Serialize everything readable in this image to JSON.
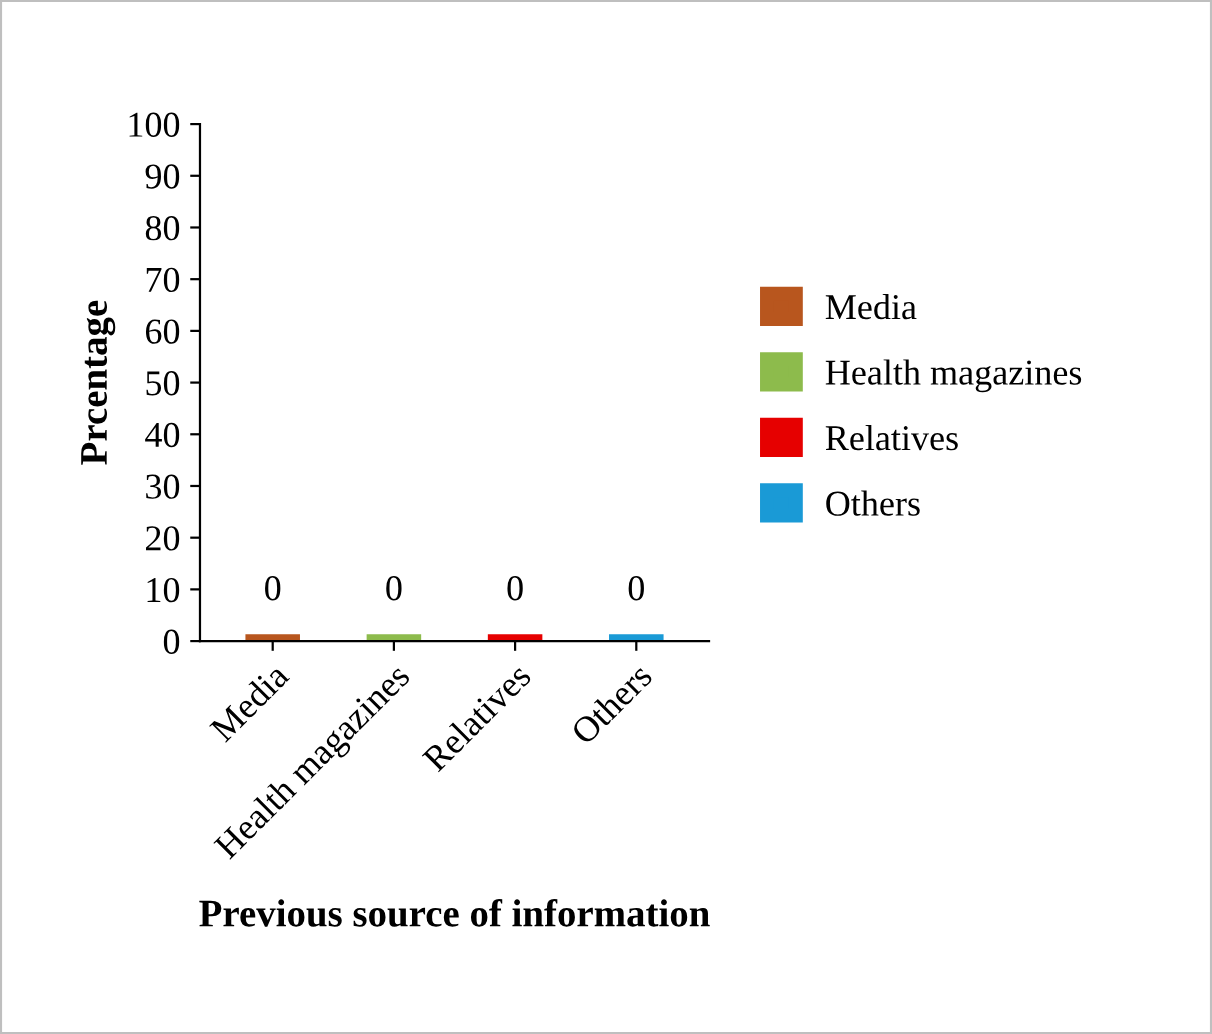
{
  "chart_data": {
    "type": "bar",
    "xlabel": "Previous source of information",
    "ylabel": "Prcentage",
    "categories": [
      "Media",
      "Health magazines",
      "Relatives",
      "Others"
    ],
    "series": [
      {
        "name": "Media",
        "color": "#b8561e",
        "values": [
          0,
          null,
          null,
          null
        ]
      },
      {
        "name": "Health magazines",
        "color": "#8dbb4c",
        "values": [
          null,
          0,
          null,
          null
        ]
      },
      {
        "name": "Relatives",
        "color": "#e60000",
        "values": [
          null,
          null,
          0,
          null
        ]
      },
      {
        "name": "Others",
        "color": "#1a9ad6",
        "values": [
          null,
          null,
          null,
          0
        ]
      }
    ],
    "ylim": [
      0,
      100
    ],
    "yticks": [
      0,
      10,
      20,
      30,
      40,
      50,
      60,
      70,
      80,
      90,
      100
    ],
    "data_labels": true,
    "grid": false,
    "legend": "right"
  }
}
